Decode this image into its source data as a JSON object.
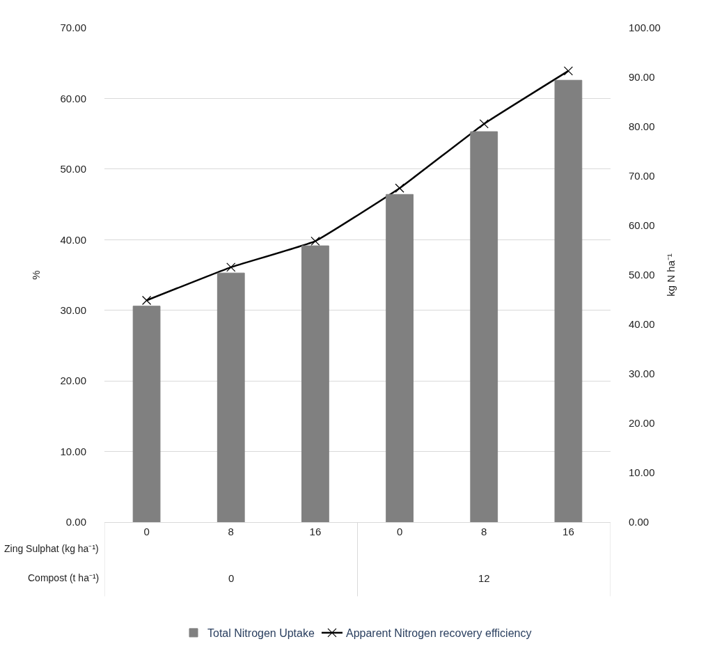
{
  "chart_data": {
    "type": "bar",
    "categories": [
      "0",
      "8",
      "16",
      "0",
      "8",
      "16"
    ],
    "ylabel": "%",
    "y2label": "kg N ha⁻¹",
    "ylim": [
      0,
      70
    ],
    "yticks": [
      {
        "value": 0,
        "label": "0.00"
      },
      {
        "value": 10,
        "label": "10.00"
      },
      {
        "value": 20,
        "label": "20.00"
      },
      {
        "value": 30,
        "label": "30.00"
      },
      {
        "value": 40,
        "label": "40.00"
      },
      {
        "value": 50,
        "label": "50.00"
      },
      {
        "value": 60,
        "label": "60.00"
      },
      {
        "value": 70,
        "label": "70.00"
      }
    ],
    "y2lim": [
      0,
      100
    ],
    "y2ticks": [
      {
        "value": 0,
        "label": "0.00"
      },
      {
        "value": 10,
        "label": "10.00"
      },
      {
        "value": 20,
        "label": "20.00"
      },
      {
        "value": 30,
        "label": "30.00"
      },
      {
        "value": 40,
        "label": "40.00"
      },
      {
        "value": 50,
        "label": "50.00"
      },
      {
        "value": 60,
        "label": "60.00"
      },
      {
        "value": 70,
        "label": "70.00"
      },
      {
        "value": 80,
        "label": "80.00"
      },
      {
        "value": 90,
        "label": "90.00"
      },
      {
        "value": 100,
        "label": "100.00"
      }
    ],
    "series": [
      {
        "name": "Total Nitrogen Uptake",
        "axis": "y2",
        "color": "#808080",
        "values": [
          43.7,
          50.4,
          55.9,
          66.3,
          79.0,
          89.4
        ]
      },
      {
        "name": "Apparent Nitrogen recovery efficiency",
        "type": "line",
        "color": "#000000",
        "marker": "cross",
        "line_style": "solid",
        "values": [
          31.4,
          36.1,
          39.8,
          47.3,
          56.4,
          63.9
        ]
      }
    ],
    "annotations": [
      "Zing Sulphat (kg ha⁻¹)",
      "Compost (t ha⁻¹)",
      "0",
      "12"
    ],
    "grid": "y",
    "legend": "bottom"
  }
}
